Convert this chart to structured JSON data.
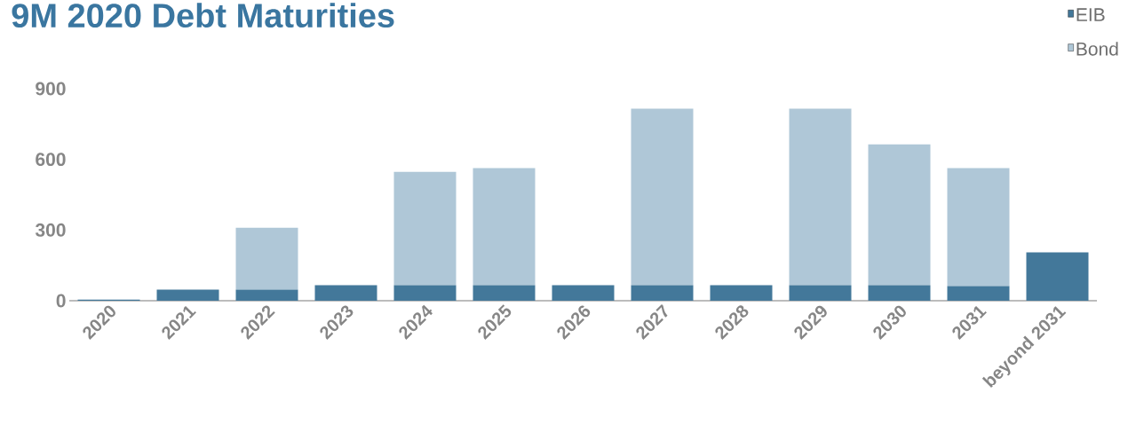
{
  "chart_data": {
    "type": "bar",
    "title": "9M 2020 Debt Maturities",
    "categories": [
      "2020",
      "2021",
      "2022",
      "2023",
      "2024",
      "2025",
      "2026",
      "2027",
      "2028",
      "2029",
      "2030",
      "2031",
      "beyond 2031"
    ],
    "stacked": true,
    "series": [
      {
        "name": "EIB",
        "color": "#43789a",
        "values": [
          5,
          47,
          47,
          66,
          66,
          66,
          66,
          66,
          66,
          66,
          66,
          62,
          205
        ]
      },
      {
        "name": "Bond",
        "color": "#afc7d7",
        "values": [
          null,
          null,
          263,
          null,
          481,
          497,
          null,
          749,
          null,
          749,
          598,
          501,
          null
        ]
      }
    ],
    "ylim": [
      0,
      900
    ],
    "yticks": [
      0,
      300,
      600,
      900
    ],
    "grid": false,
    "legend": "top right"
  }
}
